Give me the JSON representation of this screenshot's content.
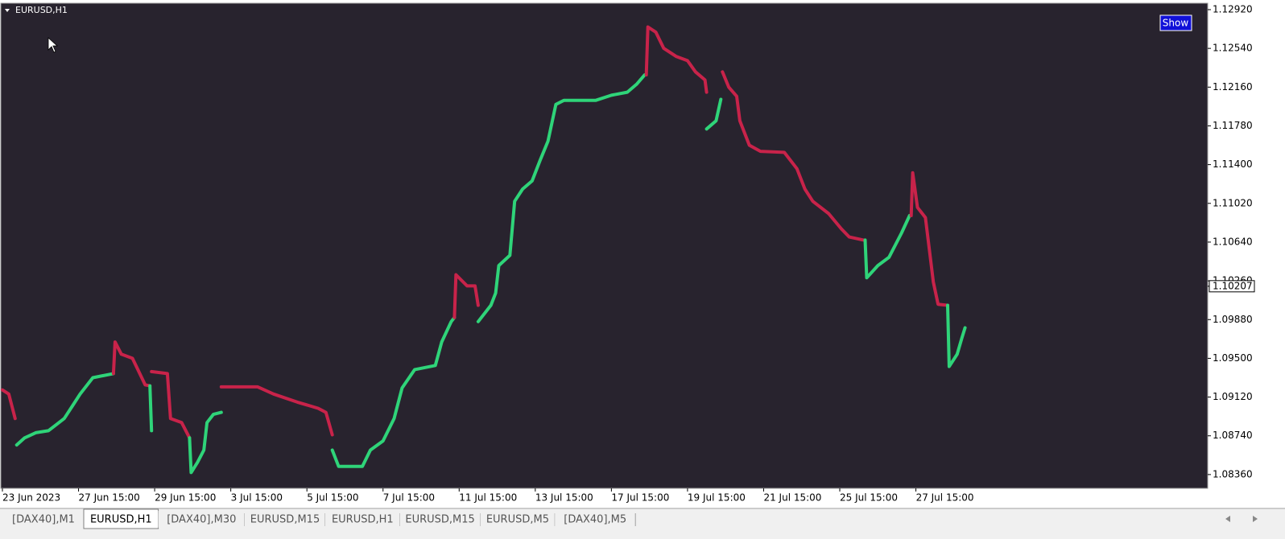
{
  "chart_data": {
    "type": "line",
    "title": "EURUSD,H1",
    "button": "Show",
    "xlim": [
      0,
      760
    ],
    "xticks": [
      {
        "value": 0,
        "label": "23 Jun 2023"
      },
      {
        "value": 48,
        "label": "27 Jun 15:00"
      },
      {
        "value": 96,
        "label": "29 Jun 15:00"
      },
      {
        "value": 144,
        "label": "3 Jul 15:00"
      },
      {
        "value": 192,
        "label": "5 Jul 15:00"
      },
      {
        "value": 240,
        "label": "7 Jul 15:00"
      },
      {
        "value": 288,
        "label": "11 Jul 15:00"
      },
      {
        "value": 336,
        "label": "13 Jul 15:00"
      },
      {
        "value": 384,
        "label": "17 Jul 15:00"
      },
      {
        "value": 432,
        "label": "19 Jul 15:00"
      },
      {
        "value": 480,
        "label": "21 Jul 15:00"
      },
      {
        "value": 528,
        "label": "25 Jul 15:00"
      },
      {
        "value": 576,
        "label": "27 Jul 15:00"
      }
    ],
    "ylim": [
      1.08225,
      1.12983
    ],
    "yticks": [
      {
        "value": 1.1292,
        "label": "1.12920"
      },
      {
        "value": 1.1254,
        "label": "1.12540"
      },
      {
        "value": 1.1216,
        "label": "1.12160"
      },
      {
        "value": 1.1178,
        "label": "1.11780"
      },
      {
        "value": 1.114,
        "label": "1.11400"
      },
      {
        "value": 1.1102,
        "label": "1.11020"
      },
      {
        "value": 1.1064,
        "label": "1.10640"
      },
      {
        "value": 1.1026,
        "label": "1.10260"
      },
      {
        "value": 1.0988,
        "label": "1.09880"
      },
      {
        "value": 1.095,
        "label": "1.09500"
      },
      {
        "value": 1.0912,
        "label": "1.09120"
      },
      {
        "value": 1.0874,
        "label": "1.08740"
      },
      {
        "value": 1.0836,
        "label": "1.08360"
      }
    ],
    "current_price": 1.10207,
    "series": [
      {
        "color": "#c8234a",
        "x": [
          0,
          4,
          8
        ],
        "values": [
          1.0919,
          1.0915,
          1.0891
        ]
      },
      {
        "color": "#2fd479",
        "x": [
          9,
          14,
          21,
          29,
          34,
          39,
          44,
          49,
          57,
          70
        ],
        "values": [
          1.0865,
          1.0872,
          1.0877,
          1.0879,
          1.0885,
          1.0891,
          1.0903,
          1.0915,
          1.0931,
          1.0935
        ]
      },
      {
        "color": "#c8234a",
        "x": [
          70,
          71,
          75,
          82,
          90,
          93
        ],
        "values": [
          1.0935,
          1.0966,
          1.0954,
          1.095,
          1.0924,
          1.0923
        ]
      },
      {
        "color": "#2fd479",
        "x": [
          93,
          94
        ],
        "values": [
          1.0923,
          1.0879
        ]
      },
      {
        "color": "#c8234a",
        "x": [
          94,
          104,
          106,
          113,
          118
        ],
        "values": [
          1.0937,
          1.0935,
          1.0891,
          1.0887,
          1.0872
        ]
      },
      {
        "color": "#2fd479",
        "x": [
          118,
          119,
          123,
          127,
          129,
          133,
          138
        ],
        "values": [
          1.0872,
          1.0838,
          1.0848,
          1.086,
          1.0887,
          1.0895,
          1.0897
        ]
      },
      {
        "color": "#c8234a",
        "x": [
          138,
          161,
          171,
          186,
          199,
          204,
          208
        ],
        "values": [
          1.0922,
          1.0922,
          1.0915,
          1.0907,
          1.0901,
          1.0897,
          1.0875
        ]
      },
      {
        "color": "#2fd479",
        "x": [
          208,
          212,
          227,
          232,
          240,
          247,
          252,
          260,
          273,
          277,
          283,
          285
        ],
        "values": [
          1.086,
          1.0844,
          1.0844,
          1.086,
          1.0869,
          1.0891,
          1.0921,
          1.0939,
          1.0943,
          1.0966,
          1.0986,
          1.099
        ]
      },
      {
        "color": "#c8234a",
        "x": [
          285,
          286,
          293,
          298,
          300
        ],
        "values": [
          1.099,
          1.1032,
          1.1021,
          1.1021,
          1.1002
        ]
      },
      {
        "color": "#2fd479",
        "x": [
          300,
          308,
          311,
          313,
          320,
          323,
          328,
          334,
          339,
          344,
          349,
          354,
          374,
          384,
          394,
          400,
          405
        ],
        "values": [
          1.0986,
          1.1002,
          1.1014,
          1.1041,
          1.1051,
          1.1104,
          1.1116,
          1.1124,
          1.1144,
          1.1163,
          1.1199,
          1.1203,
          1.1203,
          1.1208,
          1.1211,
          1.1219,
          1.1228
        ]
      },
      {
        "color": "#c8234a",
        "x": [
          406,
          407,
          412,
          417,
          425,
          432,
          437,
          443,
          444
        ],
        "values": [
          1.1228,
          1.1275,
          1.127,
          1.1254,
          1.1246,
          1.1242,
          1.1231,
          1.1223,
          1.1211
        ]
      },
      {
        "color": "#2fd479",
        "x": [
          444,
          450,
          453
        ],
        "values": [
          1.1175,
          1.1183,
          1.1204
        ]
      },
      {
        "color": "#c8234a",
        "x": [
          454,
          458,
          463,
          465,
          471,
          478,
          493,
          501,
          506,
          511,
          521,
          529,
          534,
          543
        ],
        "values": [
          1.1231,
          1.1216,
          1.1207,
          1.1183,
          1.1159,
          1.1153,
          1.1152,
          1.1136,
          1.1116,
          1.1104,
          1.1092,
          1.1077,
          1.1069,
          1.1066
        ]
      },
      {
        "color": "#2fd479",
        "x": [
          544,
          545,
          552,
          559,
          567,
          572
        ],
        "values": [
          1.1066,
          1.1029,
          1.1041,
          1.1049,
          1.1073,
          1.109
        ]
      },
      {
        "color": "#c8234a",
        "x": [
          573,
          574,
          577,
          582,
          587,
          590,
          596
        ],
        "values": [
          1.109,
          1.1132,
          1.1098,
          1.1088,
          1.1025,
          1.1003,
          1.1002
        ]
      },
      {
        "color": "#2fd479",
        "x": [
          596,
          597,
          602,
          605,
          607
        ],
        "values": [
          1.1002,
          1.0942,
          1.0954,
          1.097,
          1.098
        ]
      }
    ]
  },
  "tabs": [
    "[DAX40],M1",
    "EURUSD,H1",
    "[DAX40],M30",
    "EURUSD,M15",
    "EURUSD,H1",
    "EURUSD,M15",
    "EURUSD,M5",
    "[DAX40],M5"
  ],
  "active_tab": 1
}
